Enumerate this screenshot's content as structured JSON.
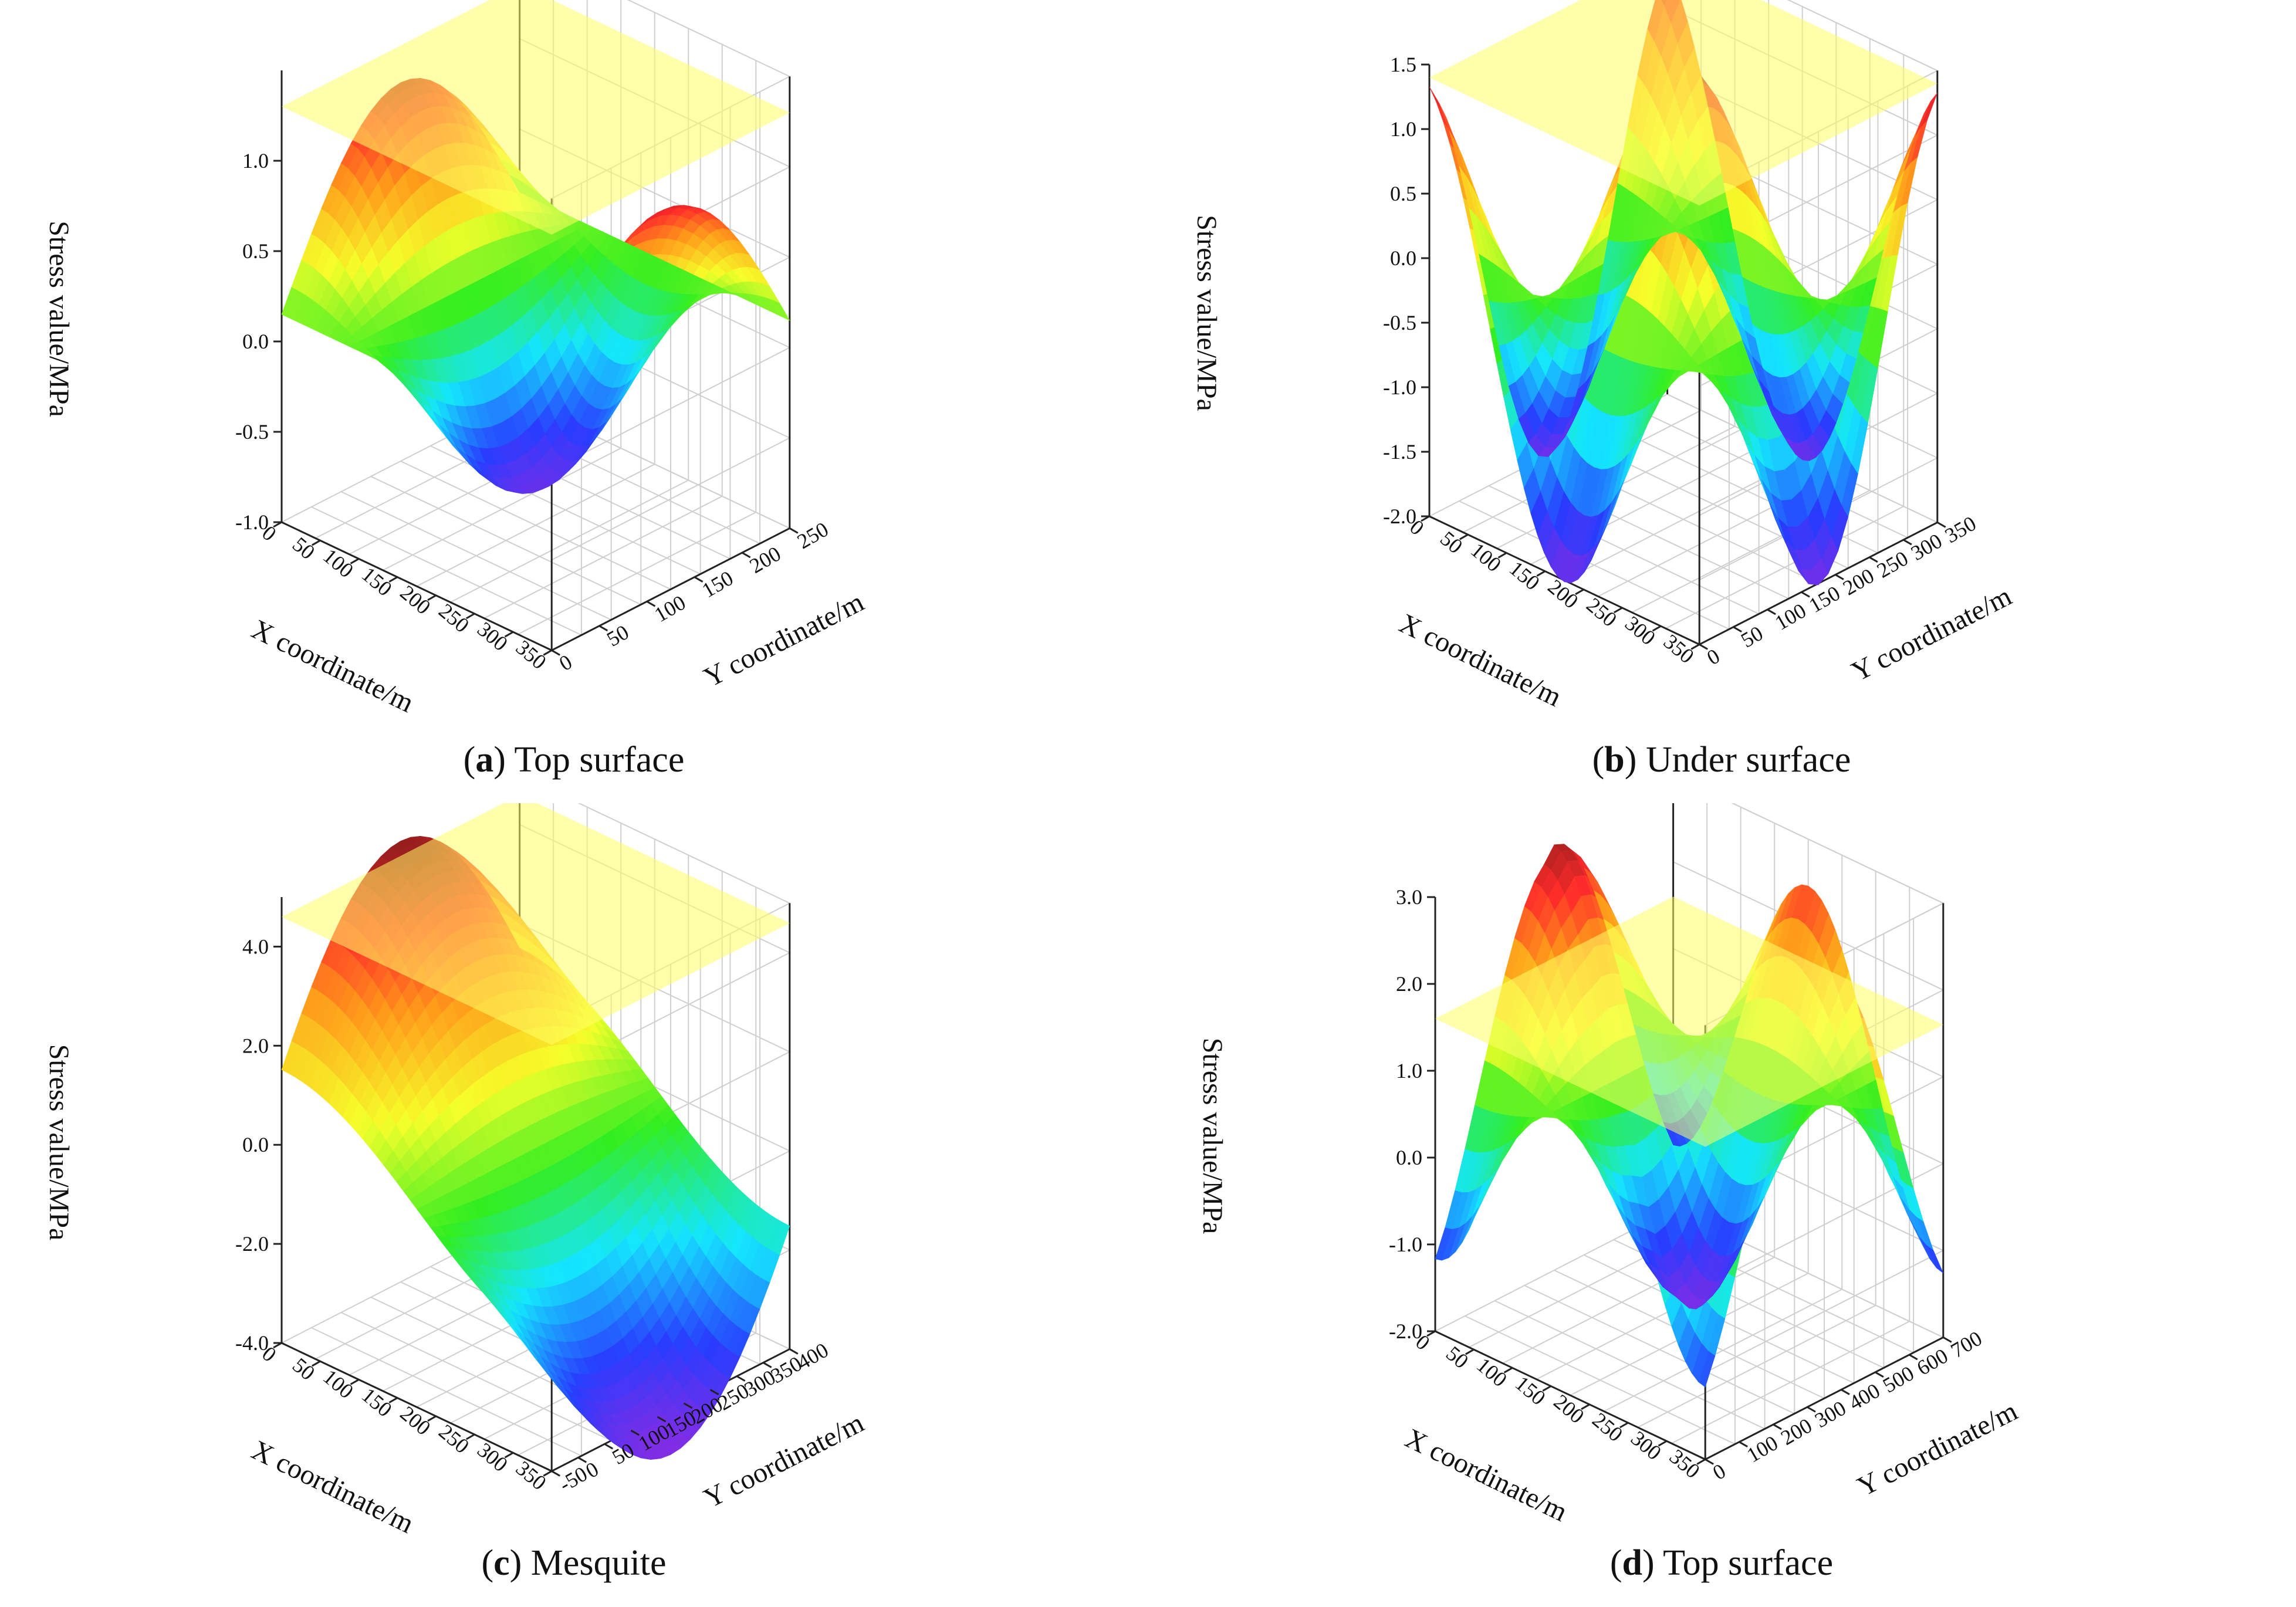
{
  "chart_data": [
    {
      "type": "surface3d",
      "panel_letter": "a",
      "title": "Top surface",
      "zlabel": "Stress value/MPa",
      "xlabel": "X coordinate/m",
      "ylabel": "Y coordinate/m",
      "zticks": [
        "-1.0",
        "-0.5",
        "0.0",
        "0.5",
        "1.0"
      ],
      "xticks": [
        "0",
        "50",
        "100",
        "150",
        "200",
        "250",
        "300",
        "350"
      ],
      "yticks": [
        "0",
        "50",
        "100",
        "150",
        "200",
        "250"
      ],
      "zlim": [
        -1.0,
        1.5
      ],
      "plane_value": 1.3,
      "surface": "two peaks ~1.2 at left and right corners, trough ~-0.9 near center-front",
      "peak_max": 1.2,
      "trough_min": -0.9
    },
    {
      "type": "surface3d",
      "panel_letter": "b",
      "title": "Under surface",
      "zlabel": "Stress value/MPa",
      "xlabel": "X coordinate/m",
      "ylabel": "Y coordinate/m",
      "zticks": [
        "-2.0",
        "-1.5",
        "-1.0",
        "-0.5",
        "0.0",
        "0.5",
        "1.0",
        "1.5"
      ],
      "xticks": [
        "0",
        "50",
        "100",
        "150",
        "200",
        "250",
        "300",
        "350"
      ],
      "yticks": [
        "0",
        "50",
        "100",
        "150",
        "200",
        "250",
        "300",
        "350"
      ],
      "zlim": [
        -2.0,
        1.5
      ],
      "plane_value": 1.4,
      "peak_max": 1.5,
      "trough_min": -2.1
    },
    {
      "type": "surface3d",
      "panel_letter": "c",
      "title": "Mesquite",
      "zlabel": "Stress value/MPa",
      "xlabel": "X coordinate/m",
      "ylabel": "Y coordinate/m",
      "zticks": [
        "-4.0",
        "-2.0",
        "0.0",
        "2.0",
        "4.0"
      ],
      "xticks": [
        "0",
        "50",
        "100",
        "150",
        "200",
        "250",
        "300",
        "350"
      ],
      "yticks": [
        "-50",
        "0",
        "50",
        "100",
        "150",
        "200",
        "250",
        "300",
        "350",
        "400"
      ],
      "zlim": [
        -4.0,
        5.0
      ],
      "plane_value": 4.6,
      "peak_max": 4.9,
      "trough_min": -5.0
    },
    {
      "type": "surface3d",
      "panel_letter": "d",
      "title": "Top surface",
      "zlabel": "Stress value/MPa",
      "xlabel": "X coordinate/m",
      "ylabel": "Y coordinate/m",
      "zticks": [
        "-2.0",
        "-1.0",
        "0.0",
        "1.0",
        "2.0",
        "3.0"
      ],
      "xticks": [
        "0",
        "50",
        "100",
        "150",
        "200",
        "250",
        "300",
        "350"
      ],
      "yticks": [
        "0",
        "100",
        "200",
        "300",
        "400",
        "500",
        "600",
        "700"
      ],
      "zlim": [
        -2.0,
        3.0
      ],
      "plane_value": 1.6,
      "peak_max": 3.0,
      "trough_min": -1.8
    }
  ],
  "colors": {
    "plane": "#ffff66",
    "red": "#ff2a2a",
    "orange": "#ff9a1a",
    "yellow": "#f6ff2a",
    "green": "#35ee20",
    "cyan": "#16e8ff",
    "blue": "#2244ff",
    "violet": "#8a2be2"
  }
}
